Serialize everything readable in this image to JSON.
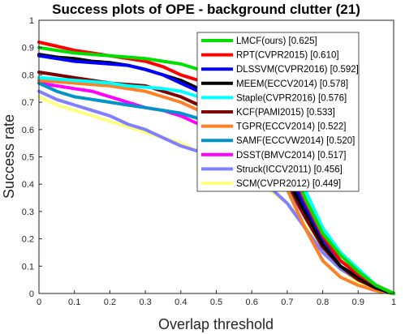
{
  "chart_data": {
    "type": "line",
    "title": "Success plots of OPE - background clutter (21)",
    "xlabel": "Overlap threshold",
    "ylabel": "Success rate",
    "xlim": [
      0,
      1
    ],
    "ylim": [
      0,
      1
    ],
    "grid": false,
    "legend_position": "top-right",
    "xticks": [
      "0",
      "0.1",
      "0.2",
      "0.3",
      "0.4",
      "0.5",
      "0.6",
      "0.7",
      "0.8",
      "0.9",
      "1"
    ],
    "yticks": [
      "0",
      "0.1",
      "0.2",
      "0.3",
      "0.4",
      "0.5",
      "0.6",
      "0.7",
      "0.8",
      "0.9",
      "1"
    ],
    "x": [
      0,
      0.05,
      0.1,
      0.15,
      0.2,
      0.25,
      0.3,
      0.35,
      0.4,
      0.45,
      0.5,
      0.55,
      0.6,
      0.65,
      0.7,
      0.75,
      0.8,
      0.85,
      0.9,
      0.95,
      1
    ],
    "series": [
      {
        "name": "LMCF(ours) [0.625]",
        "color": "#00e000",
        "values": [
          0.9,
          0.89,
          0.88,
          0.875,
          0.87,
          0.865,
          0.86,
          0.85,
          0.84,
          0.82,
          0.8,
          0.76,
          0.7,
          0.62,
          0.5,
          0.35,
          0.22,
          0.14,
          0.08,
          0.03,
          0.0
        ]
      },
      {
        "name": "RPT(CVPR2015) [0.610]",
        "color": "#ff0000",
        "values": [
          0.92,
          0.905,
          0.89,
          0.88,
          0.87,
          0.86,
          0.85,
          0.83,
          0.8,
          0.78,
          0.75,
          0.72,
          0.66,
          0.58,
          0.48,
          0.34,
          0.21,
          0.12,
          0.07,
          0.03,
          0.0
        ]
      },
      {
        "name": "DLSSVM(CVPR2016) [0.592]",
        "color": "#0000ff",
        "values": [
          0.87,
          0.86,
          0.85,
          0.845,
          0.84,
          0.835,
          0.82,
          0.8,
          0.77,
          0.74,
          0.71,
          0.67,
          0.62,
          0.55,
          0.45,
          0.32,
          0.2,
          0.12,
          0.07,
          0.03,
          0.0
        ]
      },
      {
        "name": "MEEM(ECCV2014) [0.578]",
        "color": "#000000",
        "values": [
          0.875,
          0.865,
          0.86,
          0.85,
          0.845,
          0.835,
          0.82,
          0.8,
          0.78,
          0.75,
          0.71,
          0.66,
          0.6,
          0.52,
          0.42,
          0.3,
          0.18,
          0.1,
          0.06,
          0.02,
          0.0
        ]
      },
      {
        "name": "Staple(CVPR2016) [0.576]",
        "color": "#00ffff",
        "values": [
          0.79,
          0.785,
          0.78,
          0.775,
          0.77,
          0.76,
          0.755,
          0.75,
          0.74,
          0.72,
          0.7,
          0.67,
          0.63,
          0.58,
          0.5,
          0.38,
          0.24,
          0.15,
          0.09,
          0.03,
          0.0
        ]
      },
      {
        "name": "KCF(PAMI2015) [0.533]",
        "color": "#800000",
        "values": [
          0.81,
          0.8,
          0.79,
          0.78,
          0.77,
          0.765,
          0.76,
          0.74,
          0.72,
          0.69,
          0.65,
          0.61,
          0.56,
          0.5,
          0.41,
          0.28,
          0.17,
          0.1,
          0.05,
          0.02,
          0.0
        ]
      },
      {
        "name": "TGPR(ECCV2014) [0.522]",
        "color": "#ff7f27",
        "values": [
          0.78,
          0.775,
          0.77,
          0.765,
          0.76,
          0.75,
          0.74,
          0.72,
          0.7,
          0.67,
          0.64,
          0.6,
          0.55,
          0.48,
          0.38,
          0.24,
          0.12,
          0.06,
          0.03,
          0.01,
          0.0
        ]
      },
      {
        "name": "SAMF(ECCVW2014) [0.520]",
        "color": "#0094c8",
        "values": [
          0.77,
          0.74,
          0.72,
          0.71,
          0.7,
          0.69,
          0.68,
          0.67,
          0.66,
          0.64,
          0.62,
          0.59,
          0.55,
          0.49,
          0.4,
          0.28,
          0.17,
          0.1,
          0.05,
          0.02,
          0.0
        ]
      },
      {
        "name": "DSST(BMVC2014) [0.517]",
        "color": "#ff00ff",
        "values": [
          0.77,
          0.76,
          0.75,
          0.74,
          0.72,
          0.7,
          0.68,
          0.67,
          0.65,
          0.62,
          0.59,
          0.56,
          0.52,
          0.47,
          0.39,
          0.28,
          0.17,
          0.1,
          0.05,
          0.02,
          0.0
        ]
      },
      {
        "name": "Struck(ICCV2011) [0.456]",
        "color": "#8080ff",
        "values": [
          0.74,
          0.71,
          0.69,
          0.67,
          0.65,
          0.62,
          0.6,
          0.57,
          0.54,
          0.52,
          0.49,
          0.46,
          0.43,
          0.39,
          0.33,
          0.24,
          0.15,
          0.09,
          0.05,
          0.02,
          0.0
        ]
      },
      {
        "name": "SCM(CVPR2012) [0.449]",
        "color": "#ffff80",
        "values": [
          0.72,
          0.69,
          0.67,
          0.65,
          0.63,
          0.61,
          0.59,
          0.57,
          0.55,
          0.52,
          0.49,
          0.46,
          0.42,
          0.38,
          0.33,
          0.25,
          0.16,
          0.09,
          0.04,
          0.02,
          0.0
        ]
      }
    ]
  }
}
